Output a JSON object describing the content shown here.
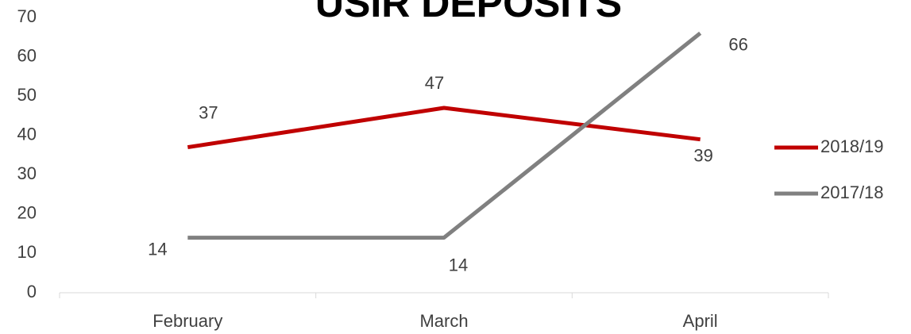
{
  "chart_data": {
    "type": "line",
    "title": "USIR DEPOSITS",
    "categories": [
      "February",
      "March",
      "April"
    ],
    "series": [
      {
        "name": "2018/19",
        "color": "#c00000",
        "values": [
          37,
          47,
          39
        ]
      },
      {
        "name": "2017/18",
        "color": "#808080",
        "values": [
          14,
          14,
          66
        ]
      }
    ],
    "ylim": [
      0,
      70
    ],
    "yticks": [
      0,
      10,
      20,
      30,
      40,
      50,
      60,
      70
    ],
    "grid": false,
    "legend": "right"
  }
}
